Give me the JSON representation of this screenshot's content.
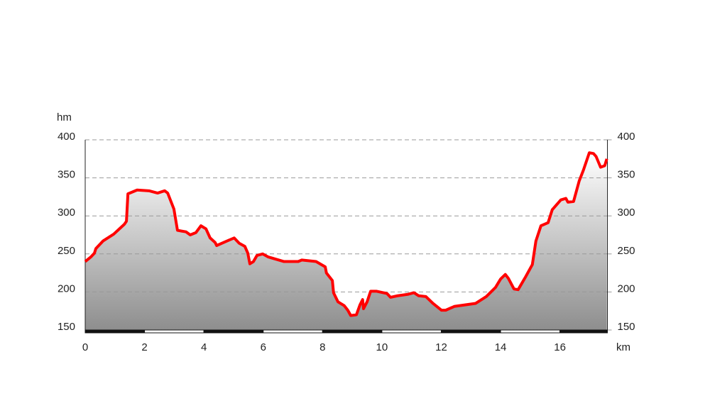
{
  "chart_data": {
    "type": "area",
    "y_label": "hm",
    "x_label": "km",
    "x": [
      0,
      0.19,
      0.31,
      0.36,
      0.6,
      0.96,
      1.32,
      1.39,
      1.44,
      1.75,
      2.15,
      2.44,
      2.68,
      2.78,
      2.99,
      3.11,
      3.4,
      3.54,
      3.73,
      3.9,
      4.07,
      4.21,
      4.38,
      4.43,
      4.78,
      5.02,
      5.19,
      5.38,
      5.48,
      5.55,
      5.67,
      5.79,
      5.98,
      6.17,
      6.7,
      7.18,
      7.3,
      7.78,
      8.09,
      8.13,
      8.33,
      8.37,
      8.52,
      8.73,
      8.85,
      8.95,
      9.14,
      9.26,
      9.35,
      9.38,
      9.5,
      9.62,
      9.81,
      10.17,
      10.29,
      10.53,
      10.89,
      11.08,
      11.24,
      11.48,
      11.72,
      12.01,
      12.15,
      12.44,
      12.8,
      13.16,
      13.52,
      13.83,
      14.0,
      14.16,
      14.26,
      14.45,
      14.59,
      14.83,
      15.07,
      15.19,
      15.36,
      15.6,
      15.74,
      16.03,
      16.2,
      16.27,
      16.46,
      16.65,
      16.79,
      16.99,
      17.13,
      17.22,
      17.37,
      17.51,
      17.58
    ],
    "values": [
      240,
      246,
      251,
      257,
      267,
      276,
      289,
      293,
      329,
      334,
      333,
      330,
      333,
      330,
      309,
      281,
      279,
      275,
      278,
      287,
      283,
      271,
      265,
      261,
      267,
      271,
      264,
      260,
      251,
      237,
      240,
      248,
      250,
      246,
      240,
      240,
      242,
      240,
      233,
      225,
      215,
      199,
      187,
      182,
      176,
      169,
      170,
      183,
      190,
      178,
      187,
      201,
      201,
      198,
      193,
      195,
      197,
      199,
      195,
      194,
      185,
      176,
      176,
      181,
      183,
      185,
      194,
      206,
      217,
      223,
      218,
      204,
      203,
      219,
      236,
      267,
      287,
      291,
      308,
      321,
      323,
      318,
      319,
      346,
      360,
      383,
      382,
      378,
      364,
      366,
      375
    ],
    "color": "#ff0000",
    "xlim": [
      0,
      17.6
    ],
    "xticks": [
      0,
      2,
      4,
      6,
      8,
      10,
      12,
      14,
      16
    ],
    "ylim": [
      150,
      400
    ],
    "yticks": [
      150,
      200,
      250,
      300,
      350,
      400
    ],
    "y2lim": [
      150,
      400
    ],
    "y2ticks": [
      150,
      200,
      250,
      300,
      350,
      400
    ],
    "grid": true
  }
}
